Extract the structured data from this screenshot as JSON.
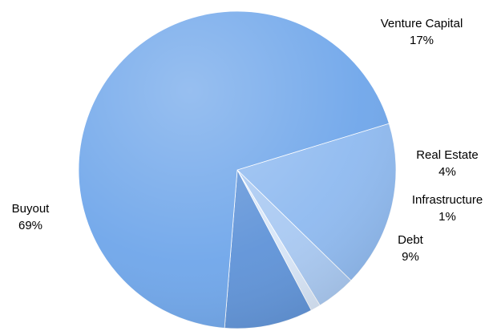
{
  "chart_data": {
    "type": "pie",
    "slices": [
      {
        "label": "Venture Capital",
        "percent_label": "17%",
        "value": 17,
        "color": "#8fbaf0"
      },
      {
        "label": "Real Estate",
        "percent_label": "4%",
        "value": 4,
        "color": "#a9c9f2"
      },
      {
        "label": "Infrastructure",
        "percent_label": "1%",
        "value": 1,
        "color": "#d8e6f8"
      },
      {
        "label": "Debt",
        "percent_label": "9%",
        "value": 9,
        "color": "#5f93d8"
      },
      {
        "label": "Buyout",
        "percent_label": "69%",
        "value": 69,
        "color": "#6fa6ea"
      }
    ],
    "title": "",
    "legend": "none",
    "start_angle_deg": -17,
    "direction": "clockwise"
  }
}
